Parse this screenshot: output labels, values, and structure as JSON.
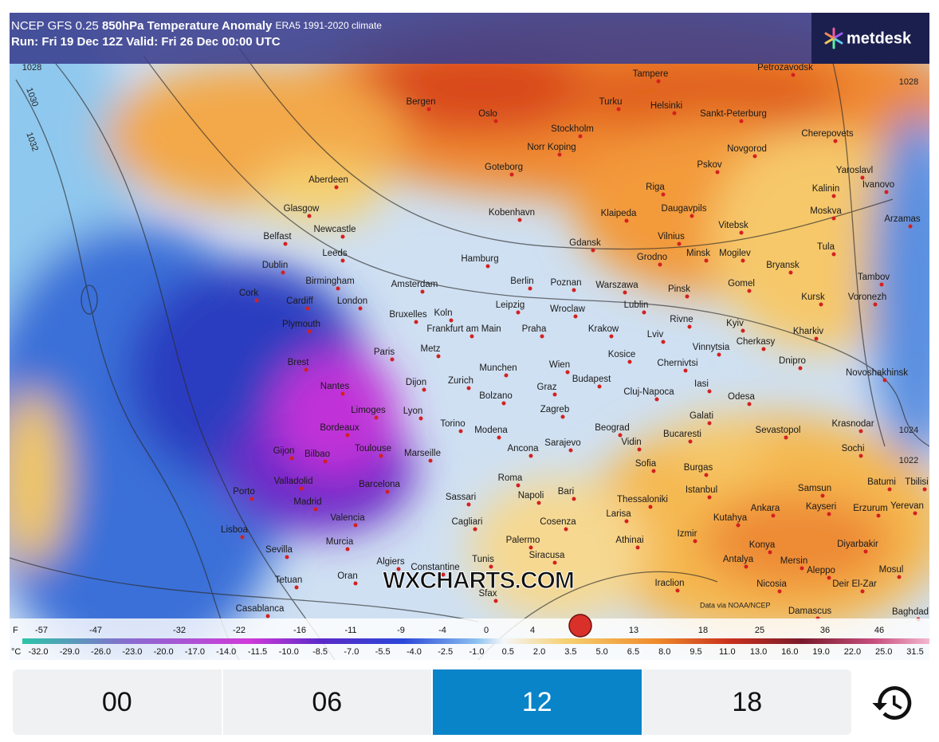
{
  "header": {
    "title_prefix": "NCEP GFS 0.25",
    "title_main": "850hPa Temperature Anomaly",
    "title_note": "ERA5 1991-2020 climate",
    "run_line": "Run: Fri 19 Dec 12Z Valid: Fri 26 Dec 00:00 UTC",
    "logo": "metdesk"
  },
  "map": {
    "watermark": "WXCHARTS.COM",
    "credit": "Data via NOAA/NCEP",
    "cities": [
      "Bergen",
      "Oslo",
      "Stockholm",
      "Tampere",
      "Turku",
      "Helsinki",
      "Sankt-Peterburg",
      "Petrozavodsk",
      "Cherepovets",
      "Novgorod",
      "Norr Koping",
      "Goteborg",
      "Pskov",
      "Riga",
      "Yaroslavl",
      "Ivanovo",
      "Kalinin",
      "Moskva",
      "Aberdeen",
      "Glasgow",
      "Kobenhavn",
      "Klaipeda",
      "Daugavpils",
      "Vitebsk",
      "Arzamas",
      "Belfast",
      "Newcastle",
      "Tula",
      "Gdansk",
      "Vilnius",
      "Dublin",
      "Leeds",
      "Hamburg",
      "Grodno",
      "Minsk",
      "Mogilev",
      "Bryansk",
      "Tambov",
      "Birmingham",
      "Amsterdam",
      "Berlin",
      "Poznan",
      "Warszawa",
      "Pinsk",
      "Gomel",
      "Cork",
      "Cardiff",
      "London",
      "Kursk",
      "Voronezh",
      "Leipzig",
      "Wroclaw",
      "Lublin",
      "Plymouth",
      "Bruxelles",
      "Koln",
      "Rivne",
      "Kyiv",
      "Frankfurt am Main",
      "Praha",
      "Krakow",
      "Lviv",
      "Kharkiv",
      "Paris",
      "Metz",
      "Vinnytsia",
      "Cherkasy",
      "Kosice",
      "Brest",
      "Chernivtsi",
      "Dnipro",
      "Nantes",
      "Munchen",
      "Wien",
      "Budapest",
      "Novoshakhinsk",
      "Dijon",
      "Zurich",
      "Graz",
      "Cluj-Napoca",
      "Iasi",
      "Odesa",
      "Limoges",
      "Lyon",
      "Bolzano",
      "Zagreb",
      "Bordeaux",
      "Torino",
      "Modena",
      "Beograd",
      "Galati",
      "Krasnodar",
      "Sevastopol",
      "Toulouse",
      "Sarajevo",
      "Vidin",
      "Bucaresti",
      "Gijon",
      "Bilbao",
      "Marseille",
      "Ancona",
      "Sochi",
      "Sofia",
      "Burgas",
      "Valladolid",
      "Barcelona",
      "Roma",
      "Istanbul",
      "Samsun",
      "Batumi",
      "Tbilisi",
      "Porto",
      "Madrid",
      "Bari",
      "Napoli",
      "Sassari",
      "Thessaloniki",
      "Yerevan",
      "Erzurum",
      "Ankara",
      "Kayseri",
      "Valencia",
      "Cagliari",
      "Larisa",
      "Kutahya",
      "Cosenza",
      "Lisboa",
      "Murcia",
      "Palermo",
      "Izmir",
      "Konya",
      "Diyarbakir",
      "Athinai",
      "Sevilla",
      "Siracusa",
      "Antalya",
      "Mersin",
      "Aleppo",
      "Mosul",
      "Algiers",
      "Constantine",
      "Tunis",
      "Tetuan",
      "Oran",
      "Iraclion",
      "Nicosia",
      "Deir El-Zar",
      "Sfax",
      "Casablanca",
      "Damascus",
      "Baghdad"
    ],
    "isobar_labels": [
      "1028",
      "1030",
      "1032",
      "1028",
      "1024",
      "1022"
    ]
  },
  "legend": {
    "f_unit": "F",
    "f_labels": [
      "-57",
      "-47",
      "-32",
      "-22",
      "-16",
      "-11",
      "-9",
      "-4",
      "0",
      "4",
      "13",
      "18",
      "25",
      "36",
      "46"
    ],
    "c_unit": "°C",
    "c_labels": [
      "-32.0",
      "-29.0",
      "-26.0",
      "-23.0",
      "-20.0",
      "-17.0",
      "-14.0",
      "-11.5",
      "-10.0",
      "-8.5",
      "-7.0",
      "-5.5",
      "-4.0",
      "-2.5",
      "-1.0",
      "0.5",
      "2.0",
      "3.5",
      "5.0",
      "6.5",
      "8.0",
      "9.5",
      "11.0",
      "13.0",
      "16.0",
      "19.0",
      "22.0",
      "25.0",
      "31.5"
    ]
  },
  "tabs": {
    "items": [
      "00",
      "06",
      "12",
      "18"
    ],
    "selected": 2
  }
}
